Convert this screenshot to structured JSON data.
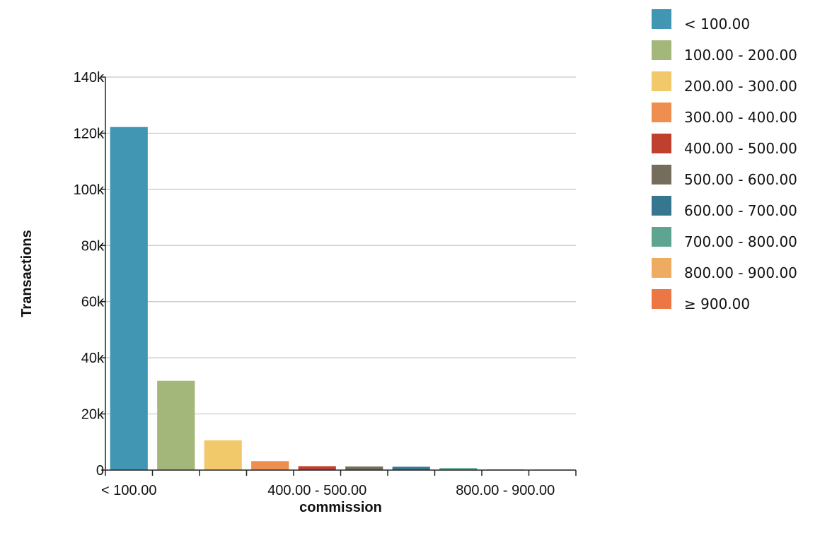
{
  "chart_data": {
    "type": "bar",
    "categories": [
      "< 100.00",
      "100.00 - 200.00",
      "200.00 - 300.00",
      "300.00 - 400.00",
      "400.00 - 500.00",
      "500.00 - 600.00",
      "600.00 - 700.00",
      "700.00 - 800.00",
      "800.00 - 900.00",
      "≥ 900.00"
    ],
    "values": [
      122200,
      31800,
      10600,
      3200,
      1400,
      1300,
      1200,
      700,
      300,
      200
    ],
    "colors": [
      "#4196b4",
      "#a4b77b",
      "#f1c96b",
      "#ee8e50",
      "#c0402f",
      "#746d5d",
      "#36778f",
      "#5fa491",
      "#eeac63",
      "#ed7744"
    ],
    "xlabel": "commission",
    "ylabel": "Transactions",
    "ylim": [
      0,
      140000
    ],
    "yticks": [
      0,
      20000,
      40000,
      60000,
      80000,
      100000,
      120000,
      140000
    ],
    "ytick_labels": [
      "0",
      "20k",
      "40k",
      "60k",
      "80k",
      "100k",
      "120k",
      "140k"
    ],
    "xtick_labels": [
      "< 100.00",
      "400.00 - 500.00",
      "800.00 - 900.00"
    ],
    "grid": "horizontal",
    "legend_position": "top-right"
  }
}
